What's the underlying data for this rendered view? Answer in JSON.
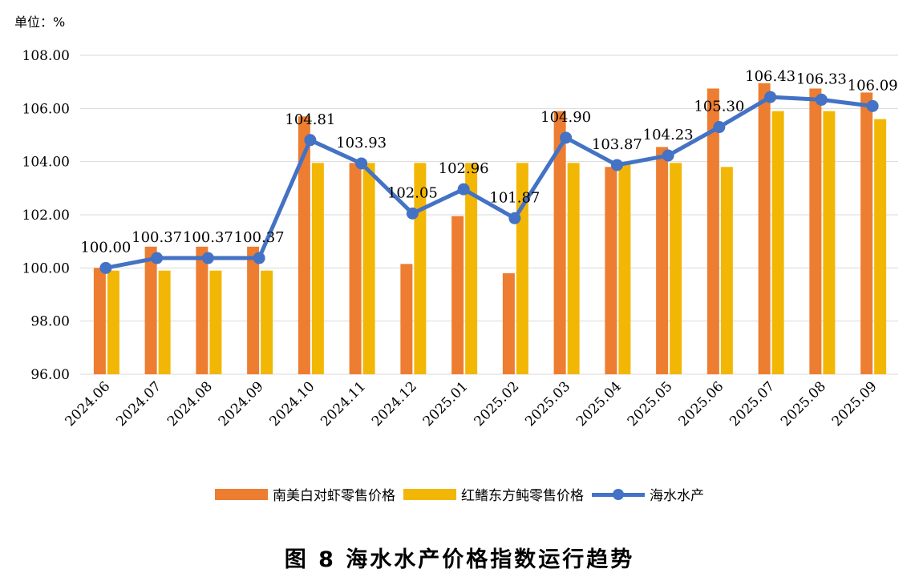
{
  "unit_label": "单位：%",
  "caption": "图 8  海水水产价格指数运行趋势",
  "colors": {
    "shrimp": "#ED7D31",
    "puffer": "#F2B705",
    "line": "#4472C4",
    "grid": "#D9D9D9"
  },
  "chart_data": {
    "type": "bar",
    "title": "",
    "xlabel": "",
    "ylabel": "",
    "ylim": [
      96,
      108
    ],
    "yticks": [
      "96.00",
      "98.00",
      "100.00",
      "102.00",
      "104.00",
      "106.00",
      "108.00"
    ],
    "grid": true,
    "legend_position": "bottom",
    "categories": [
      "2024.06",
      "2024.07",
      "2024.08",
      "2024.09",
      "2024.10",
      "2024.11",
      "2024.12",
      "2025.01",
      "2025.02",
      "2025.03",
      "2025.04",
      "2025.05",
      "2025.06",
      "2025.07",
      "2025.08",
      "2025.09"
    ],
    "series": [
      {
        "name": "南美白对虾零售价格",
        "type": "bar",
        "values": [
          100.0,
          100.8,
          100.8,
          100.8,
          105.7,
          103.95,
          100.15,
          101.95,
          99.8,
          105.9,
          103.8,
          104.55,
          106.75,
          106.95,
          106.75,
          106.6
        ]
      },
      {
        "name": "红鳍东方鲀零售价格",
        "type": "bar",
        "values": [
          99.9,
          99.9,
          99.9,
          99.9,
          103.95,
          103.95,
          103.95,
          103.95,
          103.95,
          103.95,
          103.95,
          103.95,
          103.8,
          105.9,
          105.9,
          105.6
        ]
      },
      {
        "name": "海水水产",
        "type": "line",
        "values": [
          100.0,
          100.37,
          100.37,
          100.37,
          104.81,
          103.93,
          102.05,
          102.96,
          101.87,
          104.9,
          103.87,
          104.23,
          105.3,
          106.43,
          106.33,
          106.09
        ],
        "labels": [
          "100.00",
          "100.37",
          "100.37",
          "100.37",
          "104.81",
          "103.93",
          "102.05",
          "102.96",
          "101.87",
          "104.90",
          "103.87",
          "104.23",
          "105.30",
          "106.43",
          "106.33",
          "106.09"
        ]
      }
    ]
  }
}
